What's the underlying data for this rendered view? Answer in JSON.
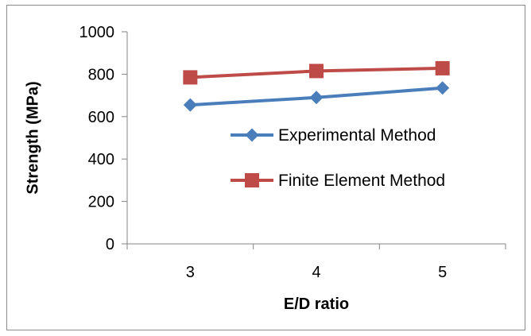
{
  "chart_data": {
    "type": "line",
    "title": "",
    "xlabel": "E/D ratio",
    "ylabel": "Strength (MPa)",
    "categories": [
      "3",
      "4",
      "5"
    ],
    "ylim": [
      0,
      1000
    ],
    "yticks": [
      "0",
      "200",
      "400",
      "600",
      "800",
      "1000"
    ],
    "grid": false,
    "legend_position": "right",
    "series": [
      {
        "name": "Experimental Method",
        "values": [
          655,
          690,
          735
        ],
        "color": "#4a7ebb",
        "marker": "diamond"
      },
      {
        "name": "Finite Element Method",
        "values": [
          785,
          815,
          828
        ],
        "color": "#be4b48",
        "marker": "square"
      }
    ]
  }
}
